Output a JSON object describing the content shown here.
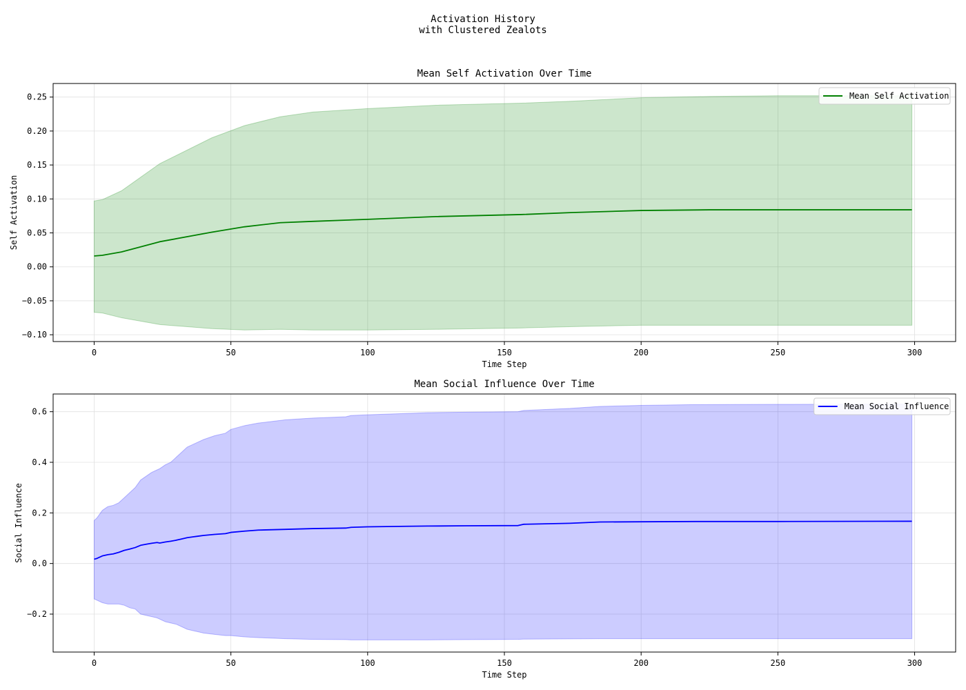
{
  "figure": {
    "suptitle_line1": "Activation History",
    "suptitle_line2": "with Clustered Zealots"
  },
  "chart_data": [
    {
      "type": "line",
      "title": "Mean Self Activation Over Time",
      "xlabel": "Time Step",
      "ylabel": "Self Activation",
      "xlim": [
        -15,
        315
      ],
      "ylim": [
        -0.11,
        0.27
      ],
      "xticks": [
        0,
        50,
        100,
        150,
        200,
        250,
        300
      ],
      "yticks": [
        -0.1,
        -0.05,
        0.0,
        0.05,
        0.1,
        0.15,
        0.2,
        0.25
      ],
      "ytick_decimals": 2,
      "grid": true,
      "legend_position": "upper right",
      "color": "#008000",
      "band_color": "#008000",
      "band_opacity": 0.2,
      "series": [
        {
          "name": "Mean Self Activation",
          "x": [
            0,
            3,
            10,
            24,
            43,
            55,
            68,
            80,
            100,
            125,
            156,
            175,
            200,
            225,
            250,
            275,
            299
          ],
          "mean": [
            0.016,
            0.017,
            0.022,
            0.037,
            0.051,
            0.059,
            0.065,
            0.067,
            0.07,
            0.074,
            0.077,
            0.08,
            0.083,
            0.084,
            0.084,
            0.084,
            0.084
          ],
          "upper": [
            0.097,
            0.099,
            0.112,
            0.152,
            0.19,
            0.208,
            0.221,
            0.228,
            0.233,
            0.238,
            0.241,
            0.244,
            0.249,
            0.251,
            0.252,
            0.252,
            0.252
          ],
          "lower": [
            -0.067,
            -0.068,
            -0.075,
            -0.085,
            -0.091,
            -0.093,
            -0.092,
            -0.093,
            -0.093,
            -0.092,
            -0.09,
            -0.088,
            -0.086,
            -0.086,
            -0.086,
            -0.086,
            -0.086
          ]
        }
      ]
    },
    {
      "type": "line",
      "title": "Mean Social Influence Over Time",
      "xlabel": "Time Step",
      "ylabel": "Social Influence",
      "xlim": [
        -15,
        315
      ],
      "ylim": [
        -0.35,
        0.67
      ],
      "xticks": [
        0,
        50,
        100,
        150,
        200,
        250,
        300
      ],
      "yticks": [
        -0.2,
        0.0,
        0.2,
        0.4,
        0.6
      ],
      "ytick_decimals": 1,
      "grid": true,
      "legend_position": "upper right",
      "color": "#0000ff",
      "band_color": "#0000ff",
      "band_opacity": 0.2,
      "series": [
        {
          "name": "Mean Social Influence",
          "x": [
            0,
            1,
            3,
            5,
            7,
            9,
            11,
            13,
            15,
            17,
            19,
            21,
            23,
            24,
            26,
            28,
            30,
            32,
            34,
            36,
            38,
            40,
            44,
            48,
            50,
            55,
            60,
            70,
            80,
            92,
            94,
            100,
            114,
            122,
            136,
            155,
            157,
            174,
            185,
            200,
            220,
            250,
            299
          ],
          "mean": [
            0.017,
            0.02,
            0.03,
            0.035,
            0.038,
            0.044,
            0.052,
            0.057,
            0.063,
            0.072,
            0.076,
            0.08,
            0.083,
            0.081,
            0.085,
            0.088,
            0.092,
            0.097,
            0.102,
            0.105,
            0.108,
            0.111,
            0.115,
            0.118,
            0.123,
            0.128,
            0.132,
            0.135,
            0.138,
            0.14,
            0.143,
            0.145,
            0.147,
            0.148,
            0.149,
            0.15,
            0.155,
            0.159,
            0.164,
            0.165,
            0.166,
            0.166,
            0.167
          ],
          "upper": [
            0.17,
            0.18,
            0.21,
            0.225,
            0.23,
            0.24,
            0.26,
            0.28,
            0.3,
            0.33,
            0.345,
            0.36,
            0.37,
            0.375,
            0.39,
            0.4,
            0.42,
            0.44,
            0.46,
            0.47,
            0.48,
            0.49,
            0.505,
            0.515,
            0.53,
            0.545,
            0.555,
            0.568,
            0.575,
            0.58,
            0.585,
            0.588,
            0.593,
            0.596,
            0.598,
            0.6,
            0.605,
            0.613,
            0.621,
            0.625,
            0.628,
            0.629,
            0.63
          ],
          "lower": [
            -0.14,
            -0.145,
            -0.155,
            -0.16,
            -0.16,
            -0.16,
            -0.165,
            -0.175,
            -0.18,
            -0.2,
            -0.205,
            -0.21,
            -0.215,
            -0.22,
            -0.23,
            -0.235,
            -0.24,
            -0.25,
            -0.26,
            -0.265,
            -0.27,
            -0.275,
            -0.28,
            -0.285,
            -0.285,
            -0.29,
            -0.293,
            -0.297,
            -0.3,
            -0.301,
            -0.302,
            -0.302,
            -0.302,
            -0.302,
            -0.301,
            -0.3,
            -0.299,
            -0.298,
            -0.297,
            -0.297,
            -0.297,
            -0.297,
            -0.297
          ]
        }
      ]
    }
  ]
}
